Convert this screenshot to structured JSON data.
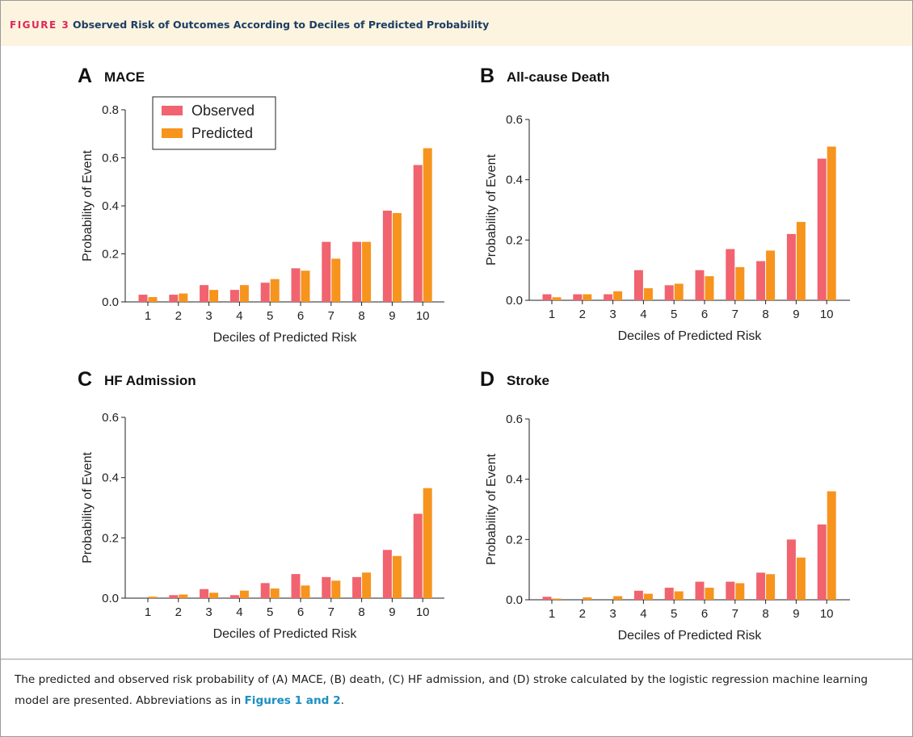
{
  "figure": {
    "label": "FIGURE 3",
    "title": "Observed Risk of Outcomes According to Deciles of Predicted Probability"
  },
  "colors": {
    "observed": "#f0636f",
    "predicted": "#f6941e",
    "header_bg": "#fcf4df",
    "figure_label": "#e0265a",
    "figure_title": "#1d3e64",
    "link": "#1a8fc2"
  },
  "caption": {
    "text": "The predicted and observed risk probability of (A) MACE, (B) death, (C) HF admission, and (D) stroke calculated by the logistic regression machine learning model are presented. Abbreviations as in ",
    "link": "Figures 1 and 2",
    "end": "."
  },
  "chart_data": [
    {
      "type": "bar",
      "panel": "A",
      "title": "MACE",
      "xlabel": "Deciles of Predicted Risk",
      "ylabel": "Probability of Event",
      "ylim": [
        0,
        0.8
      ],
      "yticks": [
        "0.0",
        "0.2",
        "0.4",
        "0.6",
        "0.8"
      ],
      "categories": [
        "1",
        "2",
        "3",
        "4",
        "5",
        "6",
        "7",
        "8",
        "9",
        "10"
      ],
      "legend": {
        "position": "top-left",
        "entries": [
          "Observed",
          "Predicted"
        ]
      },
      "series": [
        {
          "name": "Observed",
          "values": [
            0.03,
            0.03,
            0.07,
            0.05,
            0.08,
            0.14,
            0.25,
            0.25,
            0.38,
            0.57
          ]
        },
        {
          "name": "Predicted",
          "values": [
            0.02,
            0.035,
            0.05,
            0.07,
            0.095,
            0.13,
            0.18,
            0.25,
            0.37,
            0.64
          ]
        }
      ]
    },
    {
      "type": "bar",
      "panel": "B",
      "title": "All-cause Death",
      "xlabel": "Deciles of Predicted Risk",
      "ylabel": "Probability of Event",
      "ylim": [
        0,
        0.6
      ],
      "yticks": [
        "0.0",
        "0.2",
        "0.4",
        "0.6"
      ],
      "categories": [
        "1",
        "2",
        "3",
        "4",
        "5",
        "6",
        "7",
        "8",
        "9",
        "10"
      ],
      "series": [
        {
          "name": "Observed",
          "values": [
            0.02,
            0.02,
            0.02,
            0.1,
            0.05,
            0.1,
            0.17,
            0.13,
            0.22,
            0.47
          ]
        },
        {
          "name": "Predicted",
          "values": [
            0.01,
            0.02,
            0.03,
            0.04,
            0.055,
            0.08,
            0.11,
            0.165,
            0.26,
            0.51
          ]
        }
      ]
    },
    {
      "type": "bar",
      "panel": "C",
      "title": "HF Admission",
      "xlabel": "Deciles of Predicted Risk",
      "ylabel": "Probability of Event",
      "ylim": [
        0,
        0.6
      ],
      "yticks": [
        "0.0",
        "0.2",
        "0.4",
        "0.6"
      ],
      "categories": [
        "1",
        "2",
        "3",
        "4",
        "5",
        "6",
        "7",
        "8",
        "9",
        "10"
      ],
      "series": [
        {
          "name": "Observed",
          "values": [
            0.0,
            0.01,
            0.03,
            0.01,
            0.05,
            0.08,
            0.07,
            0.07,
            0.16,
            0.28
          ]
        },
        {
          "name": "Predicted",
          "values": [
            0.005,
            0.012,
            0.018,
            0.025,
            0.032,
            0.042,
            0.058,
            0.085,
            0.14,
            0.365
          ]
        }
      ]
    },
    {
      "type": "bar",
      "panel": "D",
      "title": "Stroke",
      "xlabel": "Deciles of Predicted Risk",
      "ylabel": "Probability of Event",
      "ylim": [
        0,
        0.6
      ],
      "yticks": [
        "0.0",
        "0.2",
        "0.4",
        "0.6"
      ],
      "categories": [
        "1",
        "2",
        "3",
        "4",
        "5",
        "6",
        "7",
        "8",
        "9",
        "10"
      ],
      "series": [
        {
          "name": "Observed",
          "values": [
            0.01,
            0.0,
            0.0,
            0.03,
            0.04,
            0.06,
            0.06,
            0.09,
            0.2,
            0.25
          ]
        },
        {
          "name": "Predicted",
          "values": [
            0.004,
            0.008,
            0.012,
            0.02,
            0.028,
            0.04,
            0.055,
            0.085,
            0.14,
            0.36
          ]
        }
      ]
    }
  ]
}
